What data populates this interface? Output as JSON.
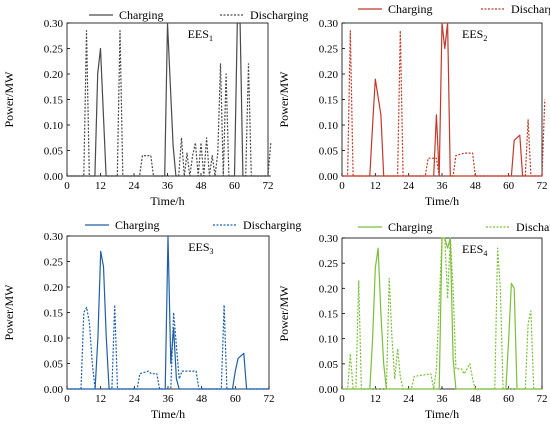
{
  "chart_data": [
    {
      "type": "line",
      "color": "#4a4a4a",
      "label_main": "EES",
      "label_sub": "1",
      "xlabel": "Time/h",
      "ylabel": "Power/MW",
      "xlim": [
        0,
        72
      ],
      "ylim": [
        0,
        0.3
      ],
      "xticks": [
        "0",
        "12",
        "24",
        "36",
        "48",
        "60",
        "72"
      ],
      "yticks": [
        "0.00",
        "0.05",
        "0.10",
        "0.15",
        "0.20",
        "0.25",
        "0.30"
      ],
      "legend": [
        "Charging",
        "Discharging"
      ],
      "series": [
        {
          "name": "Charging",
          "style": "solid",
          "x": [
            0,
            10,
            11,
            12,
            14,
            15,
            35,
            36,
            38,
            39,
            60,
            61,
            62,
            63,
            73
          ],
          "y": [
            0,
            0,
            0.2,
            0.25,
            0,
            0,
            0,
            0.3,
            0.06,
            0,
            0,
            0.3,
            0.3,
            0,
            0
          ]
        },
        {
          "name": "Discharging",
          "style": "dotted",
          "x": [
            0,
            6,
            7,
            8,
            18,
            19,
            20,
            26,
            27,
            30,
            31,
            40,
            41,
            42,
            43,
            44,
            45,
            46,
            47,
            48,
            49,
            50,
            51,
            52,
            53,
            54,
            55,
            56,
            57,
            58,
            59,
            64,
            65,
            66,
            72,
            73
          ],
          "y": [
            0,
            0,
            0.285,
            0,
            0,
            0.285,
            0,
            0,
            0.04,
            0.04,
            0,
            0,
            0.075,
            0,
            0.045,
            0,
            0.04,
            0.065,
            0,
            0.065,
            0,
            0.075,
            0,
            0.04,
            0,
            0.045,
            0.22,
            0,
            0.2,
            0,
            0,
            0,
            0.22,
            0,
            0,
            0.065
          ]
        }
      ]
    },
    {
      "type": "line",
      "color": "#c0392b",
      "label_main": "EES",
      "label_sub": "2",
      "xlabel": "Time/h",
      "ylabel": "Power/MW",
      "xlim": [
        0,
        72
      ],
      "ylim": [
        0,
        0.3
      ],
      "xticks": [
        "0",
        "12",
        "24",
        "36",
        "48",
        "60",
        "72"
      ],
      "yticks": [
        "0.00",
        "0.05",
        "0.10",
        "0.15",
        "0.20",
        "0.25",
        "0.30"
      ],
      "legend": [
        "Charging",
        "Discharging"
      ],
      "series": [
        {
          "name": "Charging",
          "style": "solid",
          "x": [
            0,
            10,
            11,
            12,
            14,
            15,
            33,
            34,
            35,
            36,
            37,
            38,
            39,
            61,
            62,
            64,
            65,
            72
          ],
          "y": [
            0,
            0,
            0.1,
            0.19,
            0.12,
            0,
            0,
            0.12,
            0,
            0.3,
            0.25,
            0.3,
            0,
            0,
            0.07,
            0.08,
            0,
            0
          ]
        },
        {
          "name": "Discharging",
          "style": "dotted",
          "x": [
            0,
            2,
            3,
            4,
            20,
            21,
            22,
            30,
            31,
            34,
            35,
            37,
            40,
            41,
            44,
            47,
            48,
            66,
            67,
            68,
            72,
            73
          ],
          "y": [
            0,
            0,
            0.285,
            0,
            0,
            0.285,
            0,
            0,
            0.035,
            0.035,
            0,
            0,
            0,
            0.04,
            0.045,
            0.045,
            0,
            0,
            0.11,
            0,
            0,
            0.15
          ]
        }
      ]
    },
    {
      "type": "line",
      "color": "#1f5fa8",
      "label_main": "EES",
      "label_sub": "3",
      "xlabel": "Time/h",
      "ylabel": "Power/MW",
      "xlim": [
        0,
        72
      ],
      "ylim": [
        0,
        0.3
      ],
      "xticks": [
        "0",
        "12",
        "24",
        "36",
        "48",
        "60",
        "72"
      ],
      "yticks": [
        "0.00",
        "0.05",
        "0.10",
        "0.15",
        "0.20",
        "0.25",
        "0.30"
      ],
      "legend": [
        "Charging",
        "Discharging"
      ],
      "series": [
        {
          "name": "Charging",
          "style": "solid",
          "x": [
            0,
            10,
            11,
            12,
            13,
            14,
            15,
            35,
            36,
            37,
            38,
            39,
            40,
            41,
            59,
            60,
            61,
            63,
            64,
            72
          ],
          "y": [
            0,
            0,
            0.1,
            0.27,
            0.24,
            0.1,
            0,
            0,
            0.3,
            0.05,
            0.12,
            0.02,
            0,
            0,
            0,
            0.035,
            0.06,
            0.07,
            0,
            0
          ]
        },
        {
          "name": "Discharging",
          "style": "dotted",
          "x": [
            0,
            5,
            6,
            7,
            8,
            9,
            10,
            16,
            17,
            18,
            25,
            26,
            29,
            30,
            32,
            33,
            34,
            37,
            38,
            40,
            41,
            46,
            47,
            48,
            55,
            56,
            57,
            58,
            72
          ],
          "y": [
            0,
            0,
            0.15,
            0.16,
            0.13,
            0.05,
            0,
            0,
            0.165,
            0,
            0,
            0.03,
            0.035,
            0.03,
            0.03,
            0,
            0,
            0,
            0.15,
            0.02,
            0.035,
            0.035,
            0,
            0,
            0,
            0.165,
            0,
            0,
            0
          ]
        }
      ]
    },
    {
      "type": "line",
      "color": "#7cbf3a",
      "label_main": "EES",
      "label_sub": "4",
      "xlabel": "Time/h",
      "ylabel": "Power/MW",
      "xlim": [
        0,
        72
      ],
      "ylim": [
        0,
        0.3
      ],
      "xticks": [
        "0",
        "12",
        "24",
        "36",
        "48",
        "60",
        "72"
      ],
      "yticks": [
        "0.00",
        "0.05",
        "0.10",
        "0.15",
        "0.20",
        "0.25",
        "0.30"
      ],
      "legend": [
        "Charging",
        "Discharging"
      ],
      "series": [
        {
          "name": "Charging",
          "style": "solid",
          "x": [
            0,
            10,
            11,
            12,
            13,
            14,
            15,
            16,
            35,
            36,
            37,
            38,
            39,
            40,
            41,
            59,
            60,
            61,
            62,
            63,
            72
          ],
          "y": [
            0,
            0,
            0.1,
            0.24,
            0.28,
            0.15,
            0.05,
            0,
            0,
            0.3,
            0.3,
            0.28,
            0.3,
            0.06,
            0,
            0,
            0.1,
            0.21,
            0.2,
            0,
            0
          ]
        },
        {
          "name": "Discharging",
          "style": "dotted",
          "x": [
            0,
            2,
            3,
            4,
            5,
            6,
            7,
            8,
            16,
            17,
            18,
            19,
            20,
            21,
            22,
            25,
            26,
            32,
            33,
            34,
            36,
            37,
            38,
            39,
            40,
            41,
            42,
            43,
            44,
            45,
            46,
            47,
            48,
            55,
            56,
            57,
            58,
            66,
            67,
            68,
            69,
            72
          ],
          "y": [
            0,
            0,
            0.07,
            0,
            0,
            0.215,
            0,
            0,
            0,
            0.22,
            0.1,
            0.02,
            0.08,
            0.025,
            0,
            0,
            0.025,
            0.03,
            0,
            0.04,
            0.3,
            0.3,
            0.18,
            0.3,
            0.2,
            0.04,
            0.04,
            0.04,
            0.03,
            0.04,
            0.05,
            0.02,
            0,
            0,
            0.28,
            0.2,
            0,
            0,
            0.13,
            0.155,
            0,
            0
          ]
        }
      ]
    }
  ]
}
